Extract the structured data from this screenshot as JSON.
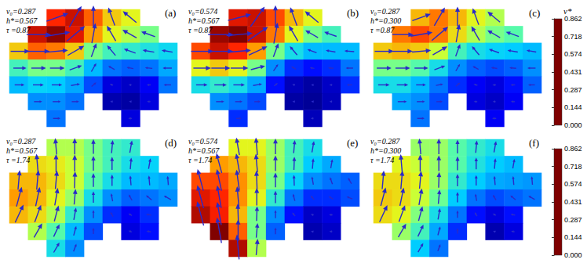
{
  "chart_data": [
    {
      "type": "heatmap",
      "label": "(a)",
      "params": [
        "v₀=0.287",
        "h*=0.567",
        "τ =0.87"
      ],
      "tick_labels": false,
      "cells": [
        [
          null,
          null,
          0.75,
          0.8,
          0.7,
          0.6,
          0.55,
          null,
          null
        ],
        [
          null,
          0.8,
          0.85,
          0.78,
          0.65,
          0.55,
          0.5,
          0.45,
          null
        ],
        [
          0.6,
          0.7,
          0.68,
          0.6,
          0.45,
          0.4,
          0.38,
          0.36,
          0.34
        ],
        [
          0.4,
          0.45,
          0.45,
          0.4,
          0.3,
          0.22,
          0.2,
          0.22,
          0.28
        ],
        [
          0.3,
          0.33,
          0.32,
          0.28,
          0.18,
          0.08,
          0.06,
          0.1,
          0.22
        ],
        [
          null,
          0.25,
          0.25,
          0.22,
          null,
          0.04,
          0.03,
          0.08,
          null
        ],
        [
          null,
          null,
          0.22,
          null,
          null,
          null,
          0.08,
          null,
          null
        ]
      ],
      "arrow_angles": [
        [
          null,
          null,
          20,
          60,
          90,
          110,
          140,
          null,
          null
        ],
        [
          null,
          0,
          10,
          40,
          80,
          120,
          150,
          160,
          null
        ],
        [
          0,
          0,
          5,
          30,
          70,
          130,
          160,
          170,
          170
        ],
        [
          0,
          0,
          0,
          20,
          60,
          150,
          170,
          175,
          180
        ],
        [
          0,
          0,
          0,
          10,
          40,
          160,
          180,
          180,
          180
        ],
        [
          null,
          0,
          0,
          0,
          null,
          180,
          180,
          180,
          null
        ],
        [
          null,
          null,
          0,
          null,
          null,
          null,
          180,
          null,
          null
        ]
      ]
    },
    {
      "type": "heatmap",
      "label": "(b)",
      "params": [
        "v₀=0.574",
        "h*=0.567",
        "τ =0.87"
      ],
      "tick_labels": false,
      "cells": [
        [
          null,
          null,
          0.78,
          0.8,
          0.72,
          0.62,
          0.55,
          null,
          null
        ],
        [
          null,
          0.84,
          0.86,
          0.8,
          0.68,
          0.55,
          0.45,
          0.4,
          null
        ],
        [
          0.72,
          0.8,
          0.75,
          0.65,
          0.45,
          0.35,
          0.3,
          0.3,
          0.3
        ],
        [
          0.55,
          0.6,
          0.55,
          0.45,
          0.25,
          0.15,
          0.12,
          0.15,
          0.22
        ],
        [
          0.35,
          0.38,
          0.35,
          0.28,
          0.12,
          0.05,
          0.03,
          0.06,
          0.15
        ],
        [
          null,
          0.25,
          0.22,
          0.18,
          null,
          0.03,
          0.02,
          0.05,
          null
        ],
        [
          null,
          null,
          0.15,
          null,
          null,
          null,
          0.05,
          null,
          null
        ]
      ],
      "arrow_angles": [
        [
          null,
          null,
          15,
          55,
          90,
          110,
          140,
          null,
          null
        ],
        [
          null,
          0,
          5,
          35,
          80,
          120,
          150,
          160,
          null
        ],
        [
          0,
          0,
          5,
          25,
          70,
          130,
          160,
          170,
          175
        ],
        [
          0,
          0,
          0,
          15,
          55,
          150,
          170,
          175,
          180
        ],
        [
          0,
          0,
          0,
          10,
          40,
          160,
          180,
          180,
          180
        ],
        [
          null,
          0,
          0,
          0,
          null,
          180,
          180,
          180,
          null
        ],
        [
          null,
          null,
          0,
          null,
          null,
          null,
          180,
          null,
          null
        ]
      ]
    },
    {
      "type": "heatmap",
      "label": "(c)",
      "params": [
        "v₀=0.287",
        "h*=0.300",
        "τ =0.87"
      ],
      "tick_labels": false,
      "cells": [
        [
          null,
          null,
          0.62,
          0.68,
          0.62,
          0.55,
          0.5,
          null,
          null
        ],
        [
          null,
          0.68,
          0.72,
          0.68,
          0.58,
          0.5,
          0.45,
          0.42,
          null
        ],
        [
          0.6,
          0.62,
          0.6,
          0.52,
          0.4,
          0.35,
          0.33,
          0.32,
          0.3
        ],
        [
          0.45,
          0.45,
          0.42,
          0.35,
          0.25,
          0.2,
          0.18,
          0.2,
          0.25
        ],
        [
          0.35,
          0.35,
          0.3,
          0.22,
          0.15,
          0.1,
          0.08,
          0.12,
          0.2
        ],
        [
          null,
          0.28,
          0.25,
          0.18,
          null,
          0.08,
          0.06,
          0.1,
          null
        ],
        [
          null,
          null,
          0.22,
          null,
          null,
          null,
          0.1,
          null,
          null
        ]
      ],
      "arrow_angles": [
        [
          null,
          null,
          20,
          60,
          90,
          110,
          140,
          null,
          null
        ],
        [
          null,
          0,
          10,
          40,
          80,
          120,
          150,
          160,
          null
        ],
        [
          0,
          0,
          5,
          30,
          70,
          130,
          160,
          170,
          170
        ],
        [
          0,
          0,
          0,
          20,
          60,
          150,
          170,
          175,
          180
        ],
        [
          0,
          0,
          0,
          10,
          40,
          160,
          180,
          180,
          180
        ],
        [
          null,
          0,
          0,
          0,
          null,
          180,
          180,
          180,
          null
        ],
        [
          null,
          null,
          0,
          null,
          null,
          null,
          180,
          null,
          null
        ]
      ]
    },
    {
      "type": "heatmap",
      "label": "(d)",
      "params": [
        "v₀=0.287",
        "h*=0.567",
        "τ =1.74"
      ],
      "tick_labels": false,
      "cells": [
        [
          null,
          null,
          0.5,
          0.5,
          0.45,
          0.4,
          0.38,
          null,
          null
        ],
        [
          null,
          0.58,
          0.56,
          0.52,
          0.45,
          0.4,
          0.35,
          0.33,
          null
        ],
        [
          0.62,
          0.62,
          0.58,
          0.52,
          0.42,
          0.35,
          0.3,
          0.3,
          0.28
        ],
        [
          0.65,
          0.62,
          0.55,
          0.48,
          0.35,
          0.25,
          0.2,
          0.22,
          0.25
        ],
        [
          0.62,
          0.58,
          0.5,
          0.38,
          0.25,
          0.15,
          0.1,
          0.15,
          null
        ],
        [
          null,
          0.5,
          0.42,
          0.3,
          0.18,
          null,
          0.08,
          0.12,
          null
        ],
        [
          null,
          null,
          0.35,
          0.25,
          null,
          null,
          null,
          null,
          null
        ]
      ],
      "arrow_angles": [
        [
          null,
          null,
          95,
          90,
          90,
          85,
          80,
          null,
          null
        ],
        [
          null,
          95,
          90,
          90,
          90,
          90,
          85,
          80,
          null
        ],
        [
          85,
          85,
          85,
          88,
          90,
          90,
          95,
          95,
          95
        ],
        [
          75,
          78,
          80,
          85,
          90,
          100,
          120,
          140,
          150
        ],
        [
          65,
          70,
          75,
          80,
          90,
          120,
          150,
          170,
          null
        ],
        [
          null,
          60,
          65,
          75,
          90,
          null,
          160,
          170,
          null
        ],
        [
          null,
          null,
          60,
          70,
          null,
          null,
          null,
          null,
          null
        ]
      ]
    },
    {
      "type": "heatmap",
      "label": "(e)",
      "params": [
        "v₀=0.574",
        "h*=0.567",
        "τ =1.74"
      ],
      "tick_labels": false,
      "cells": [
        [
          null,
          null,
          0.55,
          0.55,
          0.48,
          0.4,
          0.35,
          null,
          null
        ],
        [
          null,
          0.65,
          0.62,
          0.58,
          0.48,
          0.4,
          0.32,
          0.28,
          null
        ],
        [
          0.72,
          0.72,
          0.66,
          0.58,
          0.45,
          0.33,
          0.25,
          0.22,
          0.2
        ],
        [
          0.78,
          0.75,
          0.66,
          0.55,
          0.38,
          0.22,
          0.15,
          0.15,
          0.18
        ],
        [
          0.82,
          0.76,
          0.62,
          0.45,
          0.25,
          0.12,
          0.06,
          0.08,
          null
        ],
        [
          null,
          0.86,
          0.7,
          0.45,
          0.2,
          null,
          0.04,
          0.06,
          null
        ],
        [
          null,
          null,
          0.82,
          0.5,
          null,
          null,
          null,
          null,
          null
        ]
      ],
      "arrow_angles": [
        [
          null,
          null,
          100,
          95,
          90,
          85,
          80,
          null,
          null
        ],
        [
          null,
          105,
          100,
          95,
          90,
          88,
          85,
          80,
          null
        ],
        [
          105,
          102,
          98,
          92,
          90,
          92,
          100,
          110,
          120
        ],
        [
          105,
          100,
          95,
          90,
          90,
          105,
          130,
          150,
          160
        ],
        [
          105,
          100,
          92,
          88,
          90,
          130,
          160,
          175,
          null
        ],
        [
          null,
          100,
          90,
          85,
          90,
          null,
          170,
          180,
          null
        ],
        [
          null,
          null,
          95,
          85,
          null,
          null,
          null,
          null,
          null
        ]
      ]
    },
    {
      "type": "heatmap",
      "label": "(f)",
      "params": [
        "v₀=0.287",
        "h*=0.300",
        "τ =1.74"
      ],
      "tick_labels": false,
      "cells": [
        [
          null,
          null,
          0.48,
          0.48,
          0.42,
          0.38,
          0.35,
          null,
          null
        ],
        [
          null,
          0.55,
          0.52,
          0.48,
          0.42,
          0.36,
          0.32,
          0.3,
          null
        ],
        [
          0.58,
          0.58,
          0.55,
          0.48,
          0.38,
          0.32,
          0.28,
          0.27,
          0.26
        ],
        [
          0.6,
          0.58,
          0.52,
          0.44,
          0.32,
          0.22,
          0.18,
          0.2,
          0.22
        ],
        [
          0.58,
          0.55,
          0.46,
          0.35,
          0.22,
          0.12,
          0.08,
          0.12,
          null
        ],
        [
          null,
          0.48,
          0.4,
          0.28,
          0.15,
          null,
          0.04,
          0.08,
          null
        ],
        [
          null,
          null,
          0.32,
          0.22,
          null,
          null,
          null,
          null,
          null
        ]
      ],
      "arrow_angles": [
        [
          null,
          null,
          95,
          90,
          90,
          85,
          80,
          null,
          null
        ],
        [
          null,
          95,
          90,
          90,
          90,
          90,
          85,
          80,
          null
        ],
        [
          85,
          85,
          85,
          88,
          90,
          90,
          95,
          95,
          95
        ],
        [
          75,
          78,
          80,
          85,
          90,
          100,
          120,
          140,
          150
        ],
        [
          65,
          70,
          75,
          80,
          90,
          120,
          150,
          170,
          null
        ],
        [
          null,
          60,
          65,
          75,
          90,
          null,
          160,
          170,
          null
        ],
        [
          null,
          null,
          60,
          70,
          null,
          null,
          null,
          null,
          null
        ]
      ]
    }
  ],
  "colorbars": [
    {
      "title": "v*",
      "range": [
        0,
        0.862
      ],
      "ticks": [
        {
          "value": 0,
          "label": "0.000"
        },
        0.144,
        0.287,
        0.431,
        0.574,
        0.718,
        0.862
      ]
    },
    {
      "range": [
        0,
        0.862
      ],
      "ticks": [
        {
          "value": 0,
          "label": "0.000"
        },
        0.144,
        0.287,
        0.431,
        0.574,
        0.718,
        0.862
      ]
    }
  ]
}
